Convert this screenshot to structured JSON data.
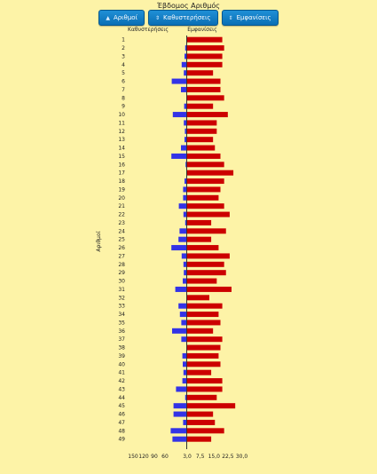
{
  "header": {
    "title": "Έβδομος Αριθμός",
    "buttons": [
      {
        "label": "Αριθμοί",
        "icon": "sort-asc-icon"
      },
      {
        "label": "Καθυστερήσεις",
        "icon": "sort-icon"
      },
      {
        "label": "Εμφανίσεις",
        "icon": "sort-icon"
      }
    ]
  },
  "chart_data": {
    "type": "bar",
    "orientation": "horizontal",
    "ylabel": "Αριθμοί",
    "left_axis_label": "Καθυστερήσεις",
    "right_axis_label": "Εμφανίσεις",
    "x_tick_labels": [
      "150",
      "120",
      "90",
      "60",
      "3,0",
      "7,5",
      "15,0",
      "22,5",
      "30,0"
    ],
    "categories": [
      "1",
      "2",
      "3",
      "4",
      "5",
      "6",
      "7",
      "8",
      "9",
      "10",
      "11",
      "12",
      "13",
      "14",
      "15",
      "16",
      "17",
      "18",
      "19",
      "20",
      "21",
      "22",
      "23",
      "24",
      "25",
      "26",
      "27",
      "28",
      "29",
      "30",
      "31",
      "32",
      "33",
      "34",
      "35",
      "36",
      "37",
      "38",
      "39",
      "40",
      "41",
      "42",
      "43",
      "44",
      "45",
      "46",
      "47",
      "48",
      "49"
    ],
    "series": [
      {
        "name": "Καθυστερήσεις",
        "color": "#3333e6",
        "values": [
          0,
          3,
          5,
          13,
          7,
          41,
          15,
          0,
          6,
          38,
          7,
          4,
          5,
          15,
          42,
          2,
          0,
          5,
          9,
          9,
          21,
          8,
          3,
          19,
          22,
          42,
          13,
          8,
          7,
          10,
          31,
          0,
          22,
          18,
          14,
          40,
          14,
          0,
          11,
          10,
          8,
          11,
          29,
          3,
          36,
          36,
          9,
          44,
          39
        ]
      },
      {
        "name": "Εμφανίσεις",
        "color": "#cc0000",
        "values": [
          19,
          20,
          19,
          19,
          14,
          18,
          18,
          20,
          14,
          22,
          16,
          16,
          14,
          15,
          18,
          20,
          25,
          20,
          18,
          17,
          20,
          23,
          13,
          21,
          13,
          17,
          23,
          20,
          21,
          16,
          24,
          12,
          19,
          17,
          18,
          14,
          19,
          18,
          17,
          18,
          13,
          19,
          19,
          16,
          26,
          14,
          15,
          20,
          13
        ]
      }
    ]
  }
}
